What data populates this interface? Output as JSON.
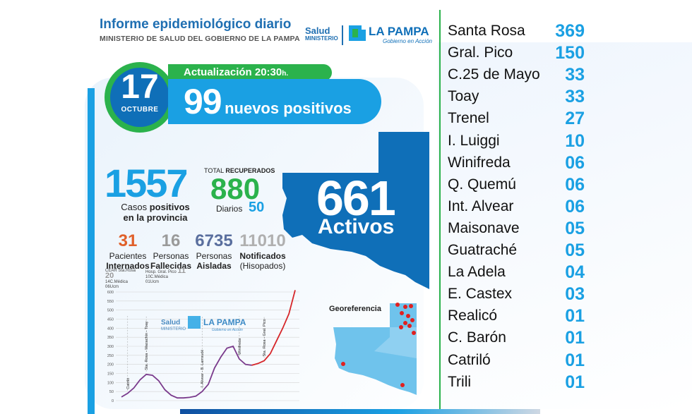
{
  "header": {
    "title": "Informe epidemiológico diario",
    "subtitle": "MINISTERIO DE SALUD DEL GOBIERNO DE LA PAMPA",
    "logo_salud": "Salud",
    "logo_ministerio": "MINISTERIO",
    "logo_lapampa": "LA PAMPA",
    "logo_tagline": "Gobierno en Acción"
  },
  "date": {
    "day": "17",
    "month": "OCTUBRE"
  },
  "update": {
    "label": "Actualización 20:30",
    "suffix": "h."
  },
  "new_positives": {
    "value": "99",
    "label": "nuevos positivos"
  },
  "stats": {
    "total_cases": "1557",
    "total_cases_label_a": "Casos",
    "total_cases_label_b": "positivos",
    "total_cases_label_c": "en la provincia",
    "recovered_title_a": "TOTAL",
    "recovered_title_b": "RECUPERADOS",
    "recovered": "880",
    "daily_label": "Diarios",
    "daily": "50",
    "active": "661",
    "active_label": "Activos",
    "hospital": "31",
    "hospital_label_a": "Pacientes",
    "hospital_label_b": "Internados",
    "deaths": "16",
    "deaths_label_a": "Personas",
    "deaths_label_b": "Fallecidas",
    "isolated": "6735",
    "isolated_label_a": "Personas",
    "isolated_label_b": "Aisladas",
    "notified": "11010",
    "notified_label_a": "Notificados",
    "notified_label_b": "(Hisopados)"
  },
  "hospital_details": {
    "cear_label": "CEAR Sta.Rosa",
    "cear_value": "20",
    "cear_sub_a": "14C.Médica",
    "cear_sub_b": "06Ucm",
    "hosp_label": "Hosp. Gral. Pico",
    "hosp_value": "11",
    "hosp_sub_a": "10C.Médica",
    "hosp_sub_b": "01Ucm"
  },
  "map": {
    "georef_label": "Georeferencia"
  },
  "localities": [
    {
      "name": "Santa Rosa",
      "count": "369"
    },
    {
      "name": "Gral. Pico",
      "count": "150"
    },
    {
      "name": "C.25 de Mayo",
      "count": "33"
    },
    {
      "name": "Toay",
      "count": "33"
    },
    {
      "name": "Trenel",
      "count": "27"
    },
    {
      "name": "I. Luiggi",
      "count": "10"
    },
    {
      "name": "Winifreda",
      "count": "06"
    },
    {
      "name": "Q. Quemú",
      "count": "06"
    },
    {
      "name": "Int. Alvear",
      "count": "06"
    },
    {
      "name": "Maisonave",
      "count": "05"
    },
    {
      "name": "Guatraché",
      "count": "05"
    },
    {
      "name": "La Adela",
      "count": "04"
    },
    {
      "name": "E. Castex",
      "count": "03"
    },
    {
      "name": "Realicó",
      "count": "01"
    },
    {
      "name": "C. Barón",
      "count": "01"
    },
    {
      "name": "Catriló",
      "count": "01"
    },
    {
      "name": "Trili",
      "count": "01"
    }
  ],
  "colors": {
    "blue": "#1aa0e3",
    "dark_blue": "#0f6fb8",
    "green": "#2bb24c",
    "orange": "#e0602a",
    "curve": "#7a3a8c",
    "curve_recent": "#d6262a"
  },
  "chart_data": {
    "type": "line",
    "ylim": [
      0,
      600
    ],
    "y_ticks": [
      "0",
      "50",
      "100",
      "150",
      "200",
      "250",
      "300",
      "350",
      "400",
      "450",
      "500",
      "550",
      "600"
    ],
    "annotations": [
      "Catriló",
      "Sta. Rosa - Macachín - Toay",
      "I. Alvear - B. Larroudé",
      "Winifreda",
      "Sta. Rosa - Gral. Pico"
    ],
    "series": [
      {
        "values": [
          20,
          40,
          70,
          115,
          145,
          140,
          110,
          60,
          30,
          15,
          15,
          18,
          25,
          50,
          90,
          180,
          240,
          290,
          300,
          230,
          200,
          195,
          205,
          220,
          260,
          330,
          400,
          480,
          610
        ]
      }
    ]
  }
}
